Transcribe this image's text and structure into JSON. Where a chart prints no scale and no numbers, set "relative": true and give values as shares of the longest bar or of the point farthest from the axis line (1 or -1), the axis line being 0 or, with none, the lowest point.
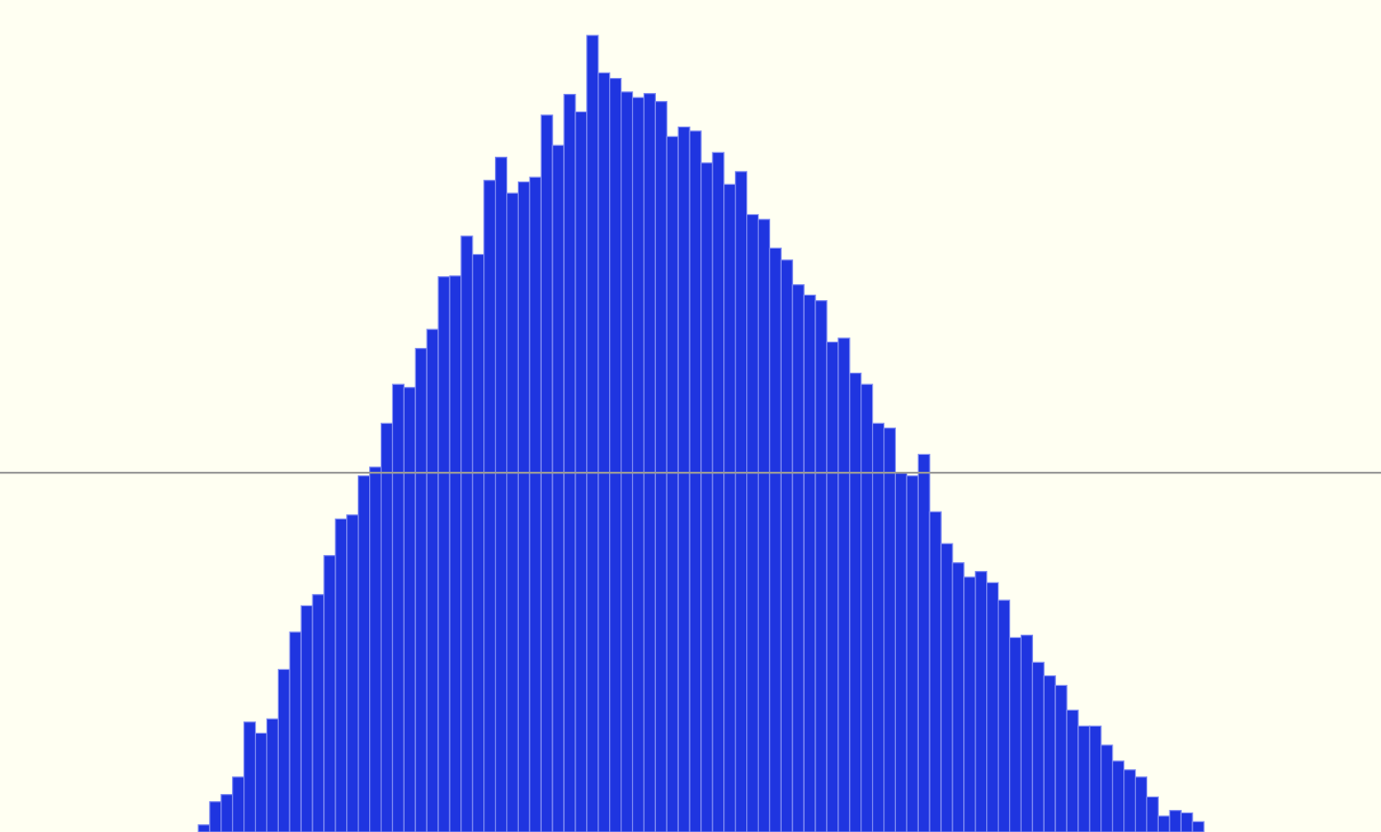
{
  "chart_data": {
    "type": "bar",
    "relative": true,
    "categories": [
      null,
      null,
      null,
      null,
      null,
      null,
      null,
      null,
      null,
      null,
      null,
      null,
      null,
      null,
      null,
      null,
      null,
      null,
      null,
      null,
      null,
      null,
      null,
      null,
      null,
      null,
      null,
      null,
      null,
      null,
      null,
      null,
      null,
      null,
      null,
      null,
      null,
      null,
      null,
      null,
      null,
      null,
      null,
      null,
      null,
      null,
      null,
      null,
      null,
      null,
      null,
      null,
      null,
      null,
      null,
      null,
      null,
      null,
      null,
      null,
      null,
      null,
      null,
      null,
      null,
      null,
      null,
      null,
      null,
      null,
      null,
      null,
      null,
      null,
      null,
      null,
      null,
      null,
      null,
      null,
      null,
      null,
      null,
      null,
      null,
      null,
      null,
      null
    ],
    "values": [
      0.009,
      0.038,
      0.047,
      0.069,
      0.138,
      0.124,
      0.142,
      0.204,
      0.251,
      0.284,
      0.298,
      0.347,
      0.393,
      0.398,
      0.447,
      0.458,
      0.513,
      0.562,
      0.558,
      0.607,
      0.631,
      0.697,
      0.698,
      0.748,
      0.725,
      0.818,
      0.847,
      0.802,
      0.816,
      0.822,
      0.9,
      0.862,
      0.926,
      0.904,
      1.0,
      0.953,
      0.946,
      0.929,
      0.922,
      0.927,
      0.917,
      0.873,
      0.885,
      0.88,
      0.84,
      0.853,
      0.813,
      0.829,
      0.775,
      0.769,
      0.733,
      0.718,
      0.687,
      0.674,
      0.667,
      0.615,
      0.62,
      0.576,
      0.562,
      0.513,
      0.507,
      0.451,
      0.447,
      0.474,
      0.402,
      0.362,
      0.338,
      0.32,
      0.327,
      0.313,
      0.291,
      0.244,
      0.247,
      0.213,
      0.196,
      0.184,
      0.153,
      0.133,
      0.133,
      0.109,
      0.089,
      0.078,
      0.069,
      0.044,
      0.02,
      0.027,
      0.024,
      0.013
    ],
    "color": "#1f35e0",
    "ref_lines": [
      {
        "axis": "y",
        "value": 0.451,
        "color": "#9a9a9a"
      }
    ]
  }
}
